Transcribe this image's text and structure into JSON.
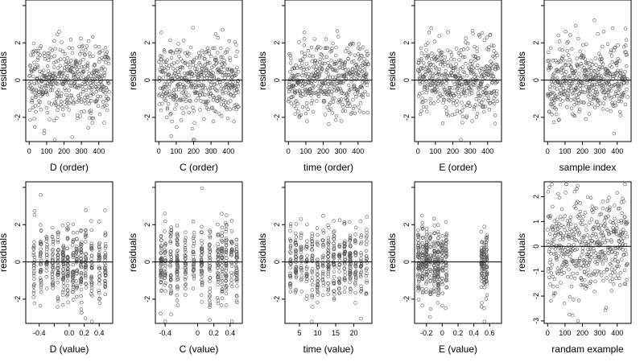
{
  "chart_data": [
    {
      "type": "scatter",
      "xlabel": "D (order)",
      "ylabel": "residuals",
      "xlim": [
        -20,
        480
      ],
      "ylim": [
        -3.3,
        4.3
      ],
      "xticks": [
        0,
        100,
        200,
        300,
        400
      ],
      "yticks": [
        -2,
        0,
        2,
        4
      ],
      "ytick_labels": [
        "-2",
        "0",
        "2",
        ""
      ],
      "n_points": 460,
      "pattern": "index",
      "hline": 0
    },
    {
      "type": "scatter",
      "xlabel": "C (order)",
      "ylabel": "residuals",
      "xlim": [
        -20,
        480
      ],
      "ylim": [
        -3.3,
        4.3
      ],
      "xticks": [
        0,
        100,
        200,
        300,
        400
      ],
      "yticks": [
        -2,
        0,
        2,
        4
      ],
      "ytick_labels": [
        "-2",
        "0",
        "2",
        ""
      ],
      "n_points": 460,
      "pattern": "index",
      "hline": 0
    },
    {
      "type": "scatter",
      "xlabel": "time (order)",
      "ylabel": "residuals",
      "xlim": [
        -20,
        480
      ],
      "ylim": [
        -3.3,
        4.3
      ],
      "xticks": [
        0,
        100,
        200,
        300,
        400
      ],
      "yticks": [
        -2,
        0,
        2,
        4
      ],
      "ytick_labels": [
        "-2",
        "0",
        "2",
        ""
      ],
      "n_points": 460,
      "pattern": "index",
      "hline": 0
    },
    {
      "type": "scatter",
      "xlabel": "E (order)",
      "ylabel": "residuals",
      "xlim": [
        -20,
        480
      ],
      "ylim": [
        -3.3,
        4.3
      ],
      "xticks": [
        0,
        100,
        200,
        300,
        400
      ],
      "yticks": [
        -2,
        0,
        2,
        4
      ],
      "ytick_labels": [
        "-2",
        "0",
        "2",
        ""
      ],
      "n_points": 460,
      "pattern": "index",
      "hline": 0
    },
    {
      "type": "scatter",
      "xlabel": "sample index",
      "ylabel": "residuals",
      "xlim": [
        -20,
        480
      ],
      "ylim": [
        -3.3,
        4.3
      ],
      "xticks": [
        0,
        100,
        200,
        300,
        400
      ],
      "yticks": [
        -2,
        0,
        2,
        4
      ],
      "ytick_labels": [
        "-2",
        "0",
        "2",
        ""
      ],
      "n_points": 460,
      "pattern": "index",
      "hline": 0
    },
    {
      "type": "scatter",
      "xlabel": "D (value)",
      "ylabel": "residuals",
      "xlim": [
        -0.58,
        0.58
      ],
      "ylim": [
        -3.3,
        4.3
      ],
      "xticks": [
        -0.4,
        -0.2,
        0.0,
        0.2,
        0.4
      ],
      "xtick_labels": [
        "-0.4",
        "",
        "0.0",
        "0.2",
        "0.4"
      ],
      "yticks": [
        -2,
        0,
        2,
        4
      ],
      "ytick_labels": [
        "-2",
        "0",
        "2",
        ""
      ],
      "n_points": 460,
      "pattern": "value-columns",
      "columns": [
        -0.47,
        -0.38,
        -0.3,
        -0.22,
        -0.15,
        -0.08,
        -0.02,
        0.05,
        0.1,
        0.16,
        0.22,
        0.3,
        0.4,
        0.48
      ],
      "hline": 0
    },
    {
      "type": "scatter",
      "xlabel": "C (value)",
      "ylabel": "residuals",
      "xlim": [
        -0.52,
        0.55
      ],
      "ylim": [
        -3.3,
        4.3
      ],
      "xticks": [
        -0.4,
        0.0,
        0.2,
        0.4
      ],
      "yticks": [
        -2,
        0,
        2,
        4
      ],
      "ytick_labels": [
        "-2",
        "0",
        "2",
        ""
      ],
      "n_points": 460,
      "pattern": "value-columns",
      "columns": [
        -0.45,
        -0.4,
        -0.33,
        -0.25,
        -0.15,
        -0.05,
        0.05,
        0.15,
        0.25,
        0.3,
        0.35,
        0.42,
        0.48
      ],
      "hline": 0
    },
    {
      "type": "scatter",
      "xlabel": "time (value)",
      "ylabel": "residuals",
      "xlim": [
        1,
        25
      ],
      "ylim": [
        -3.3,
        4.3
      ],
      "xticks": [
        5,
        10,
        15,
        20
      ],
      "yticks": [
        -2,
        0,
        2,
        4
      ],
      "ytick_labels": [
        "-2",
        "0",
        "2",
        ""
      ],
      "n_points": 460,
      "pattern": "value-columns",
      "columns": [
        2.5,
        4,
        5.5,
        7,
        8.5,
        10,
        11.5,
        13,
        14.5,
        16,
        17.5,
        19,
        20.5,
        22,
        23.5
      ],
      "hline": 0
    },
    {
      "type": "scatter",
      "xlabel": "E (value)",
      "ylabel": "residuals",
      "xlim": [
        -0.35,
        0.75
      ],
      "ylim": [
        -3.3,
        4.3
      ],
      "xticks": [
        -0.2,
        0.0,
        0.2,
        0.4,
        0.6
      ],
      "yticks": [
        -2,
        0,
        2,
        4
      ],
      "ytick_labels": [
        "-2",
        "0",
        "2",
        ""
      ],
      "n_points": 460,
      "pattern": "value-columns",
      "columns": [
        -0.3,
        -0.25,
        -0.2,
        -0.15,
        -0.1,
        -0.05,
        0.0,
        0.05,
        0.5,
        0.53,
        0.56
      ],
      "hline": 0
    },
    {
      "type": "scatter",
      "xlabel": "randam example",
      "ylabel": "residuals",
      "xlim": [
        -20,
        480
      ],
      "ylim": [
        -3.1,
        2.6
      ],
      "xticks": [
        0,
        100,
        200,
        300,
        400
      ],
      "yticks": [
        -3,
        -2,
        -1,
        0,
        1,
        2
      ],
      "ytick_labels": [
        "-3",
        "-2",
        "-1",
        "0",
        "1",
        "2"
      ],
      "n_points": 460,
      "pattern": "random",
      "hline": 0
    }
  ]
}
